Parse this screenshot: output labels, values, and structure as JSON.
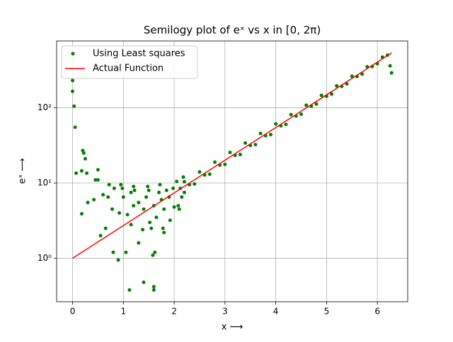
{
  "chart_data": {
    "type": "semilogy",
    "title": "Semilogy plot of eˣ vs x in [0, 2π)",
    "x_label": "x ⟶",
    "y_label": "eˣ ⟶",
    "xlim": [
      -0.314,
      6.597
    ],
    "ylim": [
      0.265,
      770
    ],
    "xticks": [
      0,
      1,
      2,
      3,
      4,
      5,
      6
    ],
    "yticks": [
      {
        "value": 1,
        "label": "10⁰"
      },
      {
        "value": 10,
        "label": "10¹"
      },
      {
        "value": 100,
        "label": "10²"
      }
    ],
    "log_y": true,
    "grid": true,
    "legend": "upper-left",
    "series": [
      {
        "name": "Using Least squares",
        "color": "#008000",
        "kind": "scatter",
        "x": [
          0,
          0,
          0.03,
          0.05,
          0.07,
          0.18,
          0.18,
          0.2,
          0.22,
          0.25,
          0.28,
          0.3,
          0.42,
          0.45,
          0.5,
          0.5,
          0.55,
          0.6,
          0.65,
          0.7,
          0.72,
          0.78,
          0.8,
          0.82,
          0.9,
          0.92,
          0.95,
          0.98,
          1.0,
          1.05,
          1.08,
          1.12,
          1.15,
          1.15,
          1.2,
          1.2,
          1.22,
          1.3,
          1.3,
          1.38,
          1.4,
          1.4,
          1.45,
          1.48,
          1.5,
          1.52,
          1.55,
          1.58,
          1.6,
          1.6,
          1.6,
          1.62,
          1.65,
          1.7,
          1.72,
          1.75,
          1.78,
          1.8,
          1.8,
          1.85,
          1.9,
          1.92,
          1.98,
          2.0,
          2.05,
          2.08,
          2.1,
          2.12,
          2.15,
          2.18,
          2.2,
          2.2,
          2.3,
          2.4,
          2.5,
          2.6,
          2.7,
          2.8,
          2.9,
          3.0,
          3.1,
          3.2,
          3.3,
          3.4,
          3.5,
          3.6,
          3.7,
          3.8,
          3.9,
          4.0,
          4.1,
          4.2,
          4.3,
          4.4,
          4.5,
          4.6,
          4.7,
          4.8,
          4.9,
          5.0,
          5.1,
          5.2,
          5.3,
          5.4,
          5.5,
          5.6,
          5.7,
          5.8,
          5.9,
          6.0,
          6.1,
          6.2,
          6.25,
          6.28
        ],
        "values": [
          230,
          165,
          105,
          55,
          13.5,
          3.9,
          14.5,
          27,
          25,
          21,
          13.5,
          5.5,
          6,
          11,
          15,
          11,
          2,
          7,
          2.5,
          6.5,
          9.5,
          4.5,
          1.2,
          8.5,
          0.95,
          4,
          9.5,
          8.5,
          6.5,
          1.2,
          3.8,
          0.38,
          2.8,
          7.5,
          9,
          5,
          8,
          1.6,
          5.5,
          2.4,
          0.48,
          4.5,
          6.5,
          9,
          8,
          3,
          2.5,
          1.1,
          0.42,
          0.38,
          5,
          1.2,
          3.5,
          7.5,
          9.5,
          6,
          2.5,
          2.2,
          4.5,
          8,
          6.5,
          3.2,
          8.5,
          4.8,
          10.5,
          5,
          4.5,
          8.5,
          6.5,
          12,
          7.5,
          10.4,
          9.5,
          9.7,
          14.0,
          12.8,
          13.1,
          18.9,
          17.3,
          17.7,
          25.5,
          23.3,
          23.9,
          34.0,
          31.5,
          32.4,
          45.5,
          42.5,
          44.0,
          61.0,
          57.5,
          60.0,
          81.0,
          77.5,
          82.0,
          108,
          105,
          112,
          146,
          142,
          152,
          195,
          192,
          207,
          262,
          260,
          280,
          350,
          352,
          385,
          470,
          500,
          360,
          290
        ]
      },
      {
        "name": "Actual Function",
        "color": "#ff0000",
        "kind": "line",
        "x": [
          0,
          0.5,
          1,
          1.5,
          2,
          2.5,
          3,
          3.5,
          4,
          4.5,
          5,
          5.5,
          6,
          6.283
        ],
        "values": [
          1,
          1.65,
          2.72,
          4.48,
          7.39,
          12.18,
          20.09,
          33.12,
          54.6,
          90.02,
          148.4,
          244.7,
          403.4,
          535.5
        ]
      }
    ]
  }
}
